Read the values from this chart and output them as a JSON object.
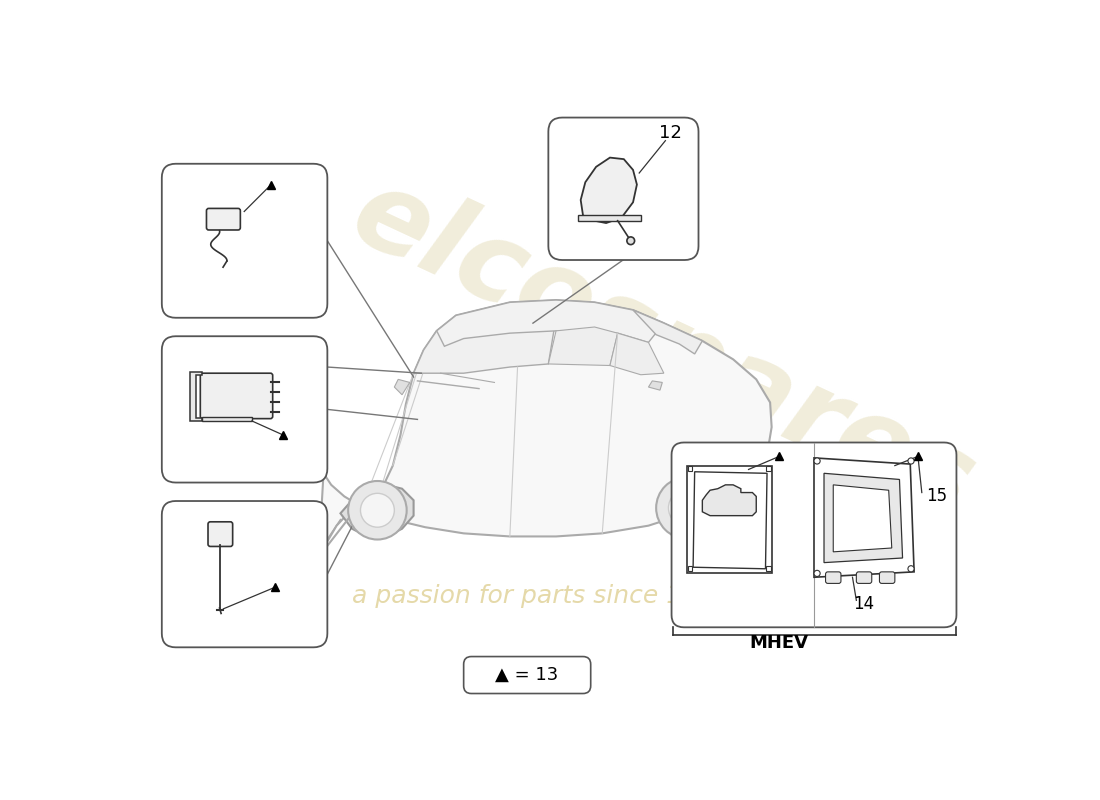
{
  "bg_color": "#ffffff",
  "line_color": "#333333",
  "box_edge_color": "#555555",
  "text_color": "#000000",
  "watermark_color1": "#c8b86e",
  "watermark_color2": "#d4c070",
  "part_label_12": "12",
  "part_label_13": "▲ = 13",
  "part_label_14": "14",
  "part_label_15": "15",
  "part_label_mhev": "MHEV",
  "car_fill": "#f5f5f5",
  "car_edge": "#999999",
  "car_line": "#aaaaaa"
}
